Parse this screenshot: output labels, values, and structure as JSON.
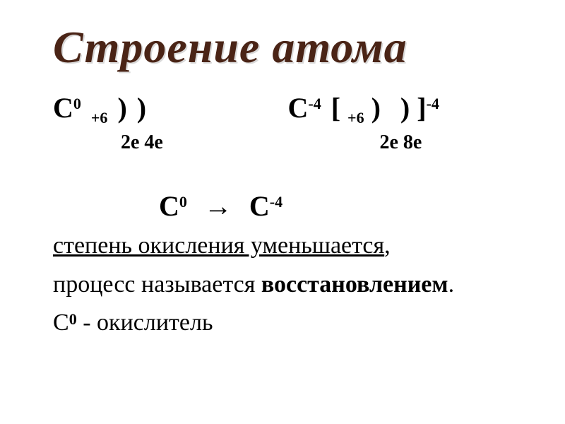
{
  "title": {
    "text": "Строение атома",
    "color": "#4a2416",
    "fontsize_pt": 48
  },
  "neutral": {
    "symbol": "С",
    "charge_sup": "0",
    "nucleus": "+6",
    "shell1": ")",
    "shell2": ")",
    "electrons": "2е  4е"
  },
  "ion": {
    "symbol": "С",
    "charge_sup": "-4",
    "bracket_open": "[",
    "nucleus": "+6",
    "shell1": ")",
    "shell2": ")",
    "bracket_close": "]",
    "outer_sup": "-4",
    "electrons": "2е   8е"
  },
  "transition": {
    "left_symbol": "С",
    "left_sup": "0",
    "arrow": "→",
    "right_symbol": "С",
    "right_sup": "-4"
  },
  "lines": {
    "l1_underlined": "степень окисления уменьшается",
    "l1_tail": ",",
    "l2_plain": "процесс называется ",
    "l2_bold": "восстановлением",
    "l2_tail": ".",
    "l3_symbol": "С",
    "l3_sup": "0",
    "l3_rest": " - окислитель"
  },
  "style": {
    "background_color": "#ffffff",
    "text_color": "#000000",
    "body_fontsize_pt": 26,
    "formula_fontsize_pt": 30,
    "font_family": "Times New Roman"
  }
}
